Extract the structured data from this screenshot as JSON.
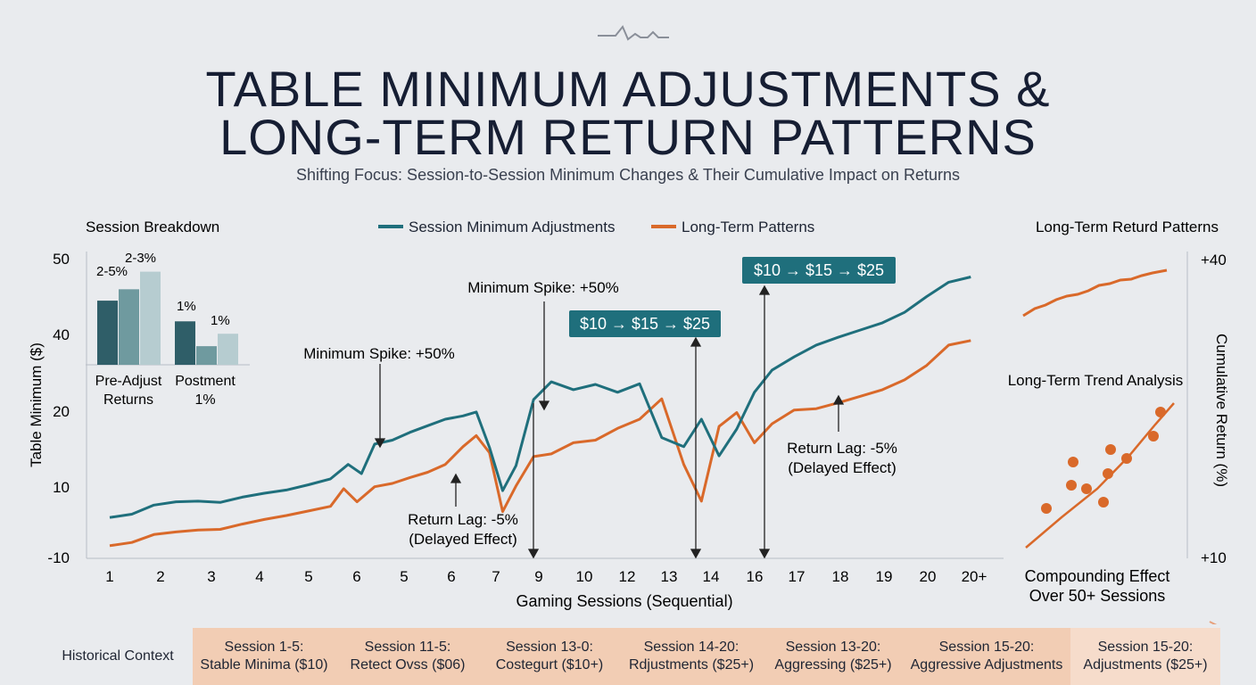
{
  "header": {
    "title_line1": "TABLE MINIMUM ADJUSTMENTS &",
    "title_line2": "LONG-TERM RETURN PATTERNS",
    "subtitle": "Shifting Focus: Session-to-Session Minimum Changes & Their Cumulative Impact on Returns",
    "logo_icon": "pulse-line-icon"
  },
  "colors": {
    "teal": "#1f6f7c",
    "orange": "#d9692a",
    "dark_teal": "#2f5e68",
    "mid_teal": "#6f9a9f",
    "light_teal": "#b6ccd0",
    "axis": "#9aa2ad",
    "timeline_bg": "#f2cdb4",
    "timeline_first": "#e9ebee"
  },
  "legend": {
    "session_label": "Session Minimum Adjustments",
    "longterm_label": "Long-Term Patterns"
  },
  "inset_left": {
    "title": "Session Breakdown",
    "label_a": "2-5%",
    "label_b": "2-3%",
    "label_c": "1%",
    "label_d": "1%",
    "caption_left_1": "Pre-Adjust",
    "caption_left_2": "Returns",
    "caption_right_1": "Postment",
    "caption_right_2": "1%",
    "bars_group1": [
      0.62,
      0.73,
      0.9
    ],
    "bars_group2": [
      0.42,
      0.18,
      0.3
    ]
  },
  "inset_right": {
    "title": "Long-Term Returd Patterns",
    "trend_title": "Long-Term Trend Analysis",
    "caption_1": "Compounding Effect",
    "caption_2": "Over 50+ Sessions"
  },
  "annotations": {
    "spike1": "Minimum Spike: +50%",
    "spike2": "Minimum Spike: +50%",
    "lag1_a": "Return Lag: -5%",
    "lag1_b": "(Delayed Effect)",
    "lag2_a": "Return Lag: -5%",
    "lag2_b": "(Delayed Effect)",
    "badge1": "$10 → $15 → $25",
    "badge2": "$10 → $15 → $25"
  },
  "chart_data": {
    "type": "line",
    "xlabel": "Gaming Sessions (Sequential)",
    "ylabel": "Table Minimum ($)",
    "y2label": "Cumulative Return (%)",
    "x_ticks": [
      "1",
      "2",
      "3",
      "4",
      "5",
      "6",
      "5",
      "6",
      "7",
      "9",
      "10",
      "12",
      "13",
      "14",
      "16",
      "17",
      "18",
      "19",
      "20",
      "20+"
    ],
    "y_ticks": [
      "-10",
      "10",
      "20",
      "40",
      "50"
    ],
    "y2_ticks": [
      "+10",
      "+40"
    ],
    "grid": false,
    "legend_position": "top-center",
    "series": [
      {
        "name": "Session Minimum Adjustments",
        "color": "teal",
        "points": [
          [
            1,
            6.5
          ],
          [
            1.5,
            7.0
          ],
          [
            2,
            8.4
          ],
          [
            2.5,
            8.9
          ],
          [
            3,
            9.0
          ],
          [
            3.5,
            8.8
          ],
          [
            4,
            9.6
          ],
          [
            4.5,
            10.2
          ],
          [
            5,
            10.7
          ],
          [
            5.5,
            11.5
          ],
          [
            6,
            12.4
          ],
          [
            6.4,
            14.6
          ],
          [
            6.7,
            13.2
          ],
          [
            7,
            17.7
          ],
          [
            7.4,
            18.3
          ],
          [
            7.8,
            19.5
          ],
          [
            8.2,
            20.5
          ],
          [
            8.6,
            21.5
          ],
          [
            9,
            22.0
          ],
          [
            9.3,
            22.6
          ],
          [
            9.6,
            17.2
          ],
          [
            9.9,
            10.6
          ],
          [
            10.2,
            14.4
          ],
          [
            10.6,
            24.5
          ],
          [
            11,
            27.2
          ],
          [
            11.5,
            26.0
          ],
          [
            12,
            26.8
          ],
          [
            12.5,
            25.6
          ],
          [
            13,
            26.9
          ],
          [
            13.5,
            18.7
          ],
          [
            14,
            17.3
          ],
          [
            14.4,
            21.5
          ],
          [
            14.8,
            15.9
          ],
          [
            15.2,
            20.0
          ],
          [
            15.6,
            25.6
          ],
          [
            16,
            29.0
          ],
          [
            16.5,
            31.0
          ],
          [
            17,
            32.8
          ],
          [
            17.5,
            34.0
          ],
          [
            18,
            35.1
          ],
          [
            18.5,
            36.2
          ],
          [
            19,
            37.8
          ],
          [
            19.5,
            40.2
          ],
          [
            20,
            42.4
          ],
          [
            20.5,
            43.2
          ]
        ]
      },
      {
        "name": "Long-Term Patterns",
        "color": "orange",
        "points": [
          [
            1,
            2.2
          ],
          [
            1.5,
            2.7
          ],
          [
            2,
            3.9
          ],
          [
            2.5,
            4.3
          ],
          [
            3,
            4.6
          ],
          [
            3.5,
            4.7
          ],
          [
            4,
            5.5
          ],
          [
            4.5,
            6.2
          ],
          [
            5,
            6.8
          ],
          [
            5.5,
            7.5
          ],
          [
            6,
            8.2
          ],
          [
            6.3,
            10.9
          ],
          [
            6.6,
            8.9
          ],
          [
            7,
            11.2
          ],
          [
            7.4,
            11.7
          ],
          [
            7.8,
            12.6
          ],
          [
            8.2,
            13.4
          ],
          [
            8.6,
            14.6
          ],
          [
            9,
            17.3
          ],
          [
            9.3,
            19.0
          ],
          [
            9.6,
            16.4
          ],
          [
            9.9,
            7.4
          ],
          [
            10.2,
            11.3
          ],
          [
            10.6,
            15.8
          ],
          [
            11,
            16.2
          ],
          [
            11.5,
            17.9
          ],
          [
            12,
            18.3
          ],
          [
            12.5,
            20.1
          ],
          [
            13,
            21.5
          ],
          [
            13.5,
            24.6
          ],
          [
            14,
            14.6
          ],
          [
            14.4,
            9.0
          ],
          [
            14.8,
            20.4
          ],
          [
            15.2,
            22.5
          ],
          [
            15.6,
            17.9
          ],
          [
            16,
            20.8
          ],
          [
            16.5,
            22.9
          ],
          [
            17,
            23.1
          ],
          [
            17.5,
            24.0
          ],
          [
            18,
            25.0
          ],
          [
            18.5,
            26.0
          ],
          [
            19,
            27.5
          ],
          [
            19.5,
            29.7
          ],
          [
            20,
            32.8
          ],
          [
            20.5,
            33.5
          ]
        ]
      }
    ]
  },
  "timeline": {
    "cells": [
      {
        "line1": "Historical Context",
        "line2": ""
      },
      {
        "line1": "Session 1-5:",
        "line2": "Stable Minima ($10)"
      },
      {
        "line1": "Session 11-5:",
        "line2": "Retect Ovss ($06)"
      },
      {
        "line1": "Session 13-0:",
        "line2": "Costegurt ($10+)"
      },
      {
        "line1": "Session 14-20:",
        "line2": "Rdjustments ($25+)"
      },
      {
        "line1": "Session 13-20:",
        "line2": "Aggressing ($25+)"
      },
      {
        "line1": "Session 15-20:",
        "line2": "Aggressive Adjustments"
      },
      {
        "line1": "Session 15-20:",
        "line2": "Adjustments ($25+)"
      }
    ]
  }
}
